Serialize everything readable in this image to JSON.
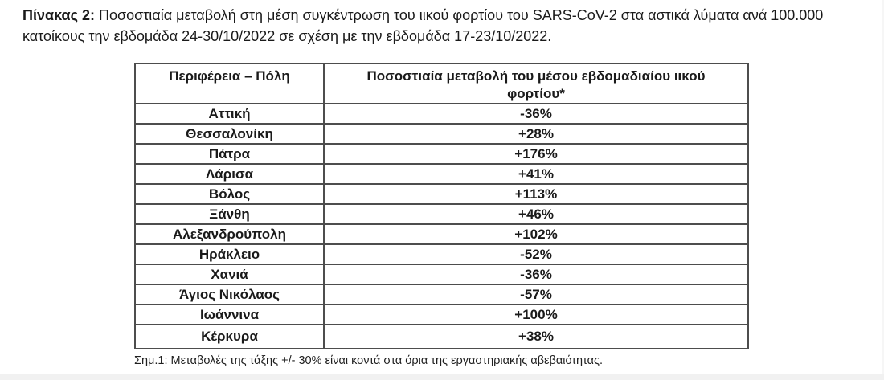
{
  "colors": {
    "background": "#ffffff",
    "text": "#1a1a1a",
    "table_border": "#4d4d4d",
    "bottom_edge": "#f1f1f1"
  },
  "title": {
    "label": "Πίνακας 2:",
    "line1": " Ποσοστιαία μεταβολή στη μέση συγκέντρωση του ιικού φορτίου του SARS-CoV-2 στα αστικά λύματα ανά 100.000",
    "line2": "κατοίκους την εβδομάδα 24-30/10/2022 σε σχέση με την εβδομάδα 17-23/10/2022."
  },
  "table": {
    "headers": {
      "region": "Περιφέρεια – Πόλη",
      "change": "Ποσοστιαία μεταβολή του μέσου εβδομαδιαίου ιικού φορτίου*"
    },
    "rows": [
      {
        "city": "Αττική",
        "value": "-36%"
      },
      {
        "city": "Θεσσαλονίκη",
        "value": "+28%"
      },
      {
        "city": "Πάτρα",
        "value": "+176%"
      },
      {
        "city": "Λάρισα",
        "value": "+41%"
      },
      {
        "city": "Βόλος",
        "value": "+113%"
      },
      {
        "city": "Ξάνθη",
        "value": "+46%"
      },
      {
        "city": "Αλεξανδρούπολη",
        "value": "+102%"
      },
      {
        "city": "Ηράκλειο",
        "value": "-52%"
      },
      {
        "city": "Χανιά",
        "value": "-36%"
      },
      {
        "city": "Άγιος Νικόλαος",
        "value": "-57%"
      },
      {
        "city": "Ιωάννινα",
        "value": "+100%"
      },
      {
        "city": "Κέρκυρα",
        "value": "+38%"
      }
    ]
  },
  "footnote": "Σημ.1: Μεταβολές της τάξης +/- 30% είναι κοντά στα όρια της εργαστηριακής αβεβαιότητας."
}
